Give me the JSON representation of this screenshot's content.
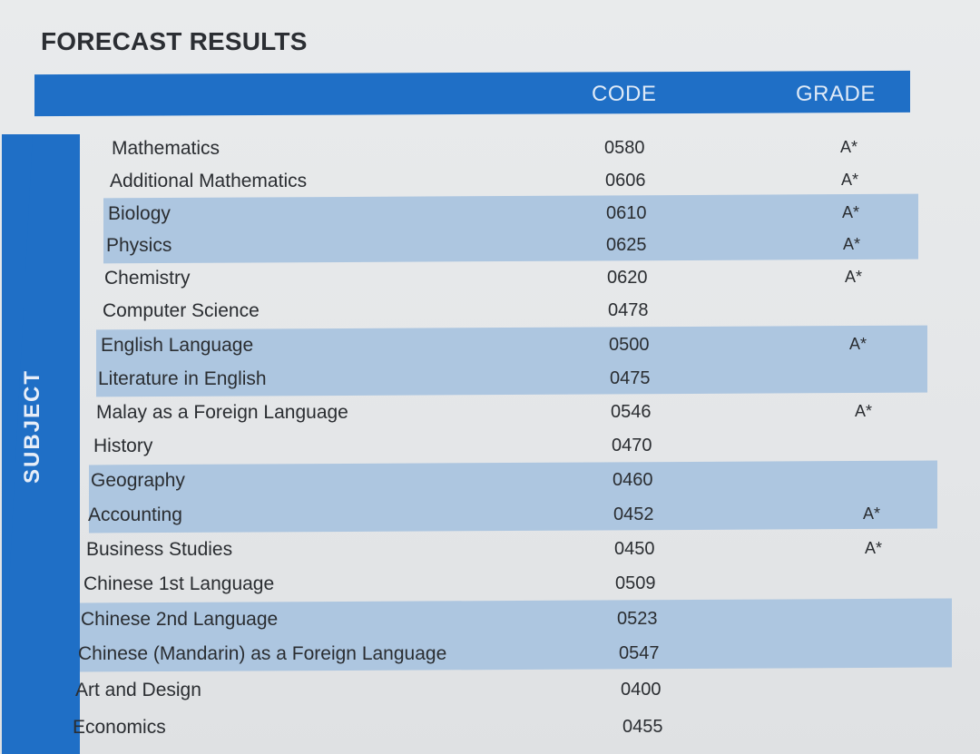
{
  "title": "FORECAST RESULTS",
  "header": {
    "code": "CODE",
    "grade": "GRADE"
  },
  "side_label": "SUBJECT",
  "colors": {
    "accent_blue": "#1f6fc6",
    "band_blue": "#adc6e0",
    "text": "#2a2d31"
  },
  "rows": [
    {
      "subject": "Mathematics",
      "code": "0580",
      "grade": "A*"
    },
    {
      "subject": "Additional Mathematics",
      "code": "0606",
      "grade": "A*"
    },
    {
      "subject": "Biology",
      "code": "0610",
      "grade": "A*"
    },
    {
      "subject": "Physics",
      "code": "0625",
      "grade": "A*"
    },
    {
      "subject": "Chemistry",
      "code": "0620",
      "grade": "A*"
    },
    {
      "subject": "Computer Science",
      "code": "0478",
      "grade": ""
    },
    {
      "subject": "English Language",
      "code": "0500",
      "grade": "A*"
    },
    {
      "subject": "Literature in English",
      "code": "0475",
      "grade": ""
    },
    {
      "subject": "Malay as a Foreign Language",
      "code": "0546",
      "grade": "A*"
    },
    {
      "subject": "History",
      "code": "0470",
      "grade": ""
    },
    {
      "subject": "Geography",
      "code": "0460",
      "grade": ""
    },
    {
      "subject": "Accounting",
      "code": "0452",
      "grade": "A*"
    },
    {
      "subject": "Business Studies",
      "code": "0450",
      "grade": "A*"
    },
    {
      "subject": "Chinese 1st Language",
      "code": "0509",
      "grade": ""
    },
    {
      "subject": "Chinese 2nd Language",
      "code": "0523",
      "grade": ""
    },
    {
      "subject": "Chinese (Mandarin) as a Foreign Language",
      "code": "0547",
      "grade": ""
    },
    {
      "subject": "Art and Design",
      "code": "0400",
      "grade": ""
    },
    {
      "subject": "Economics",
      "code": "0455",
      "grade": ""
    }
  ]
}
